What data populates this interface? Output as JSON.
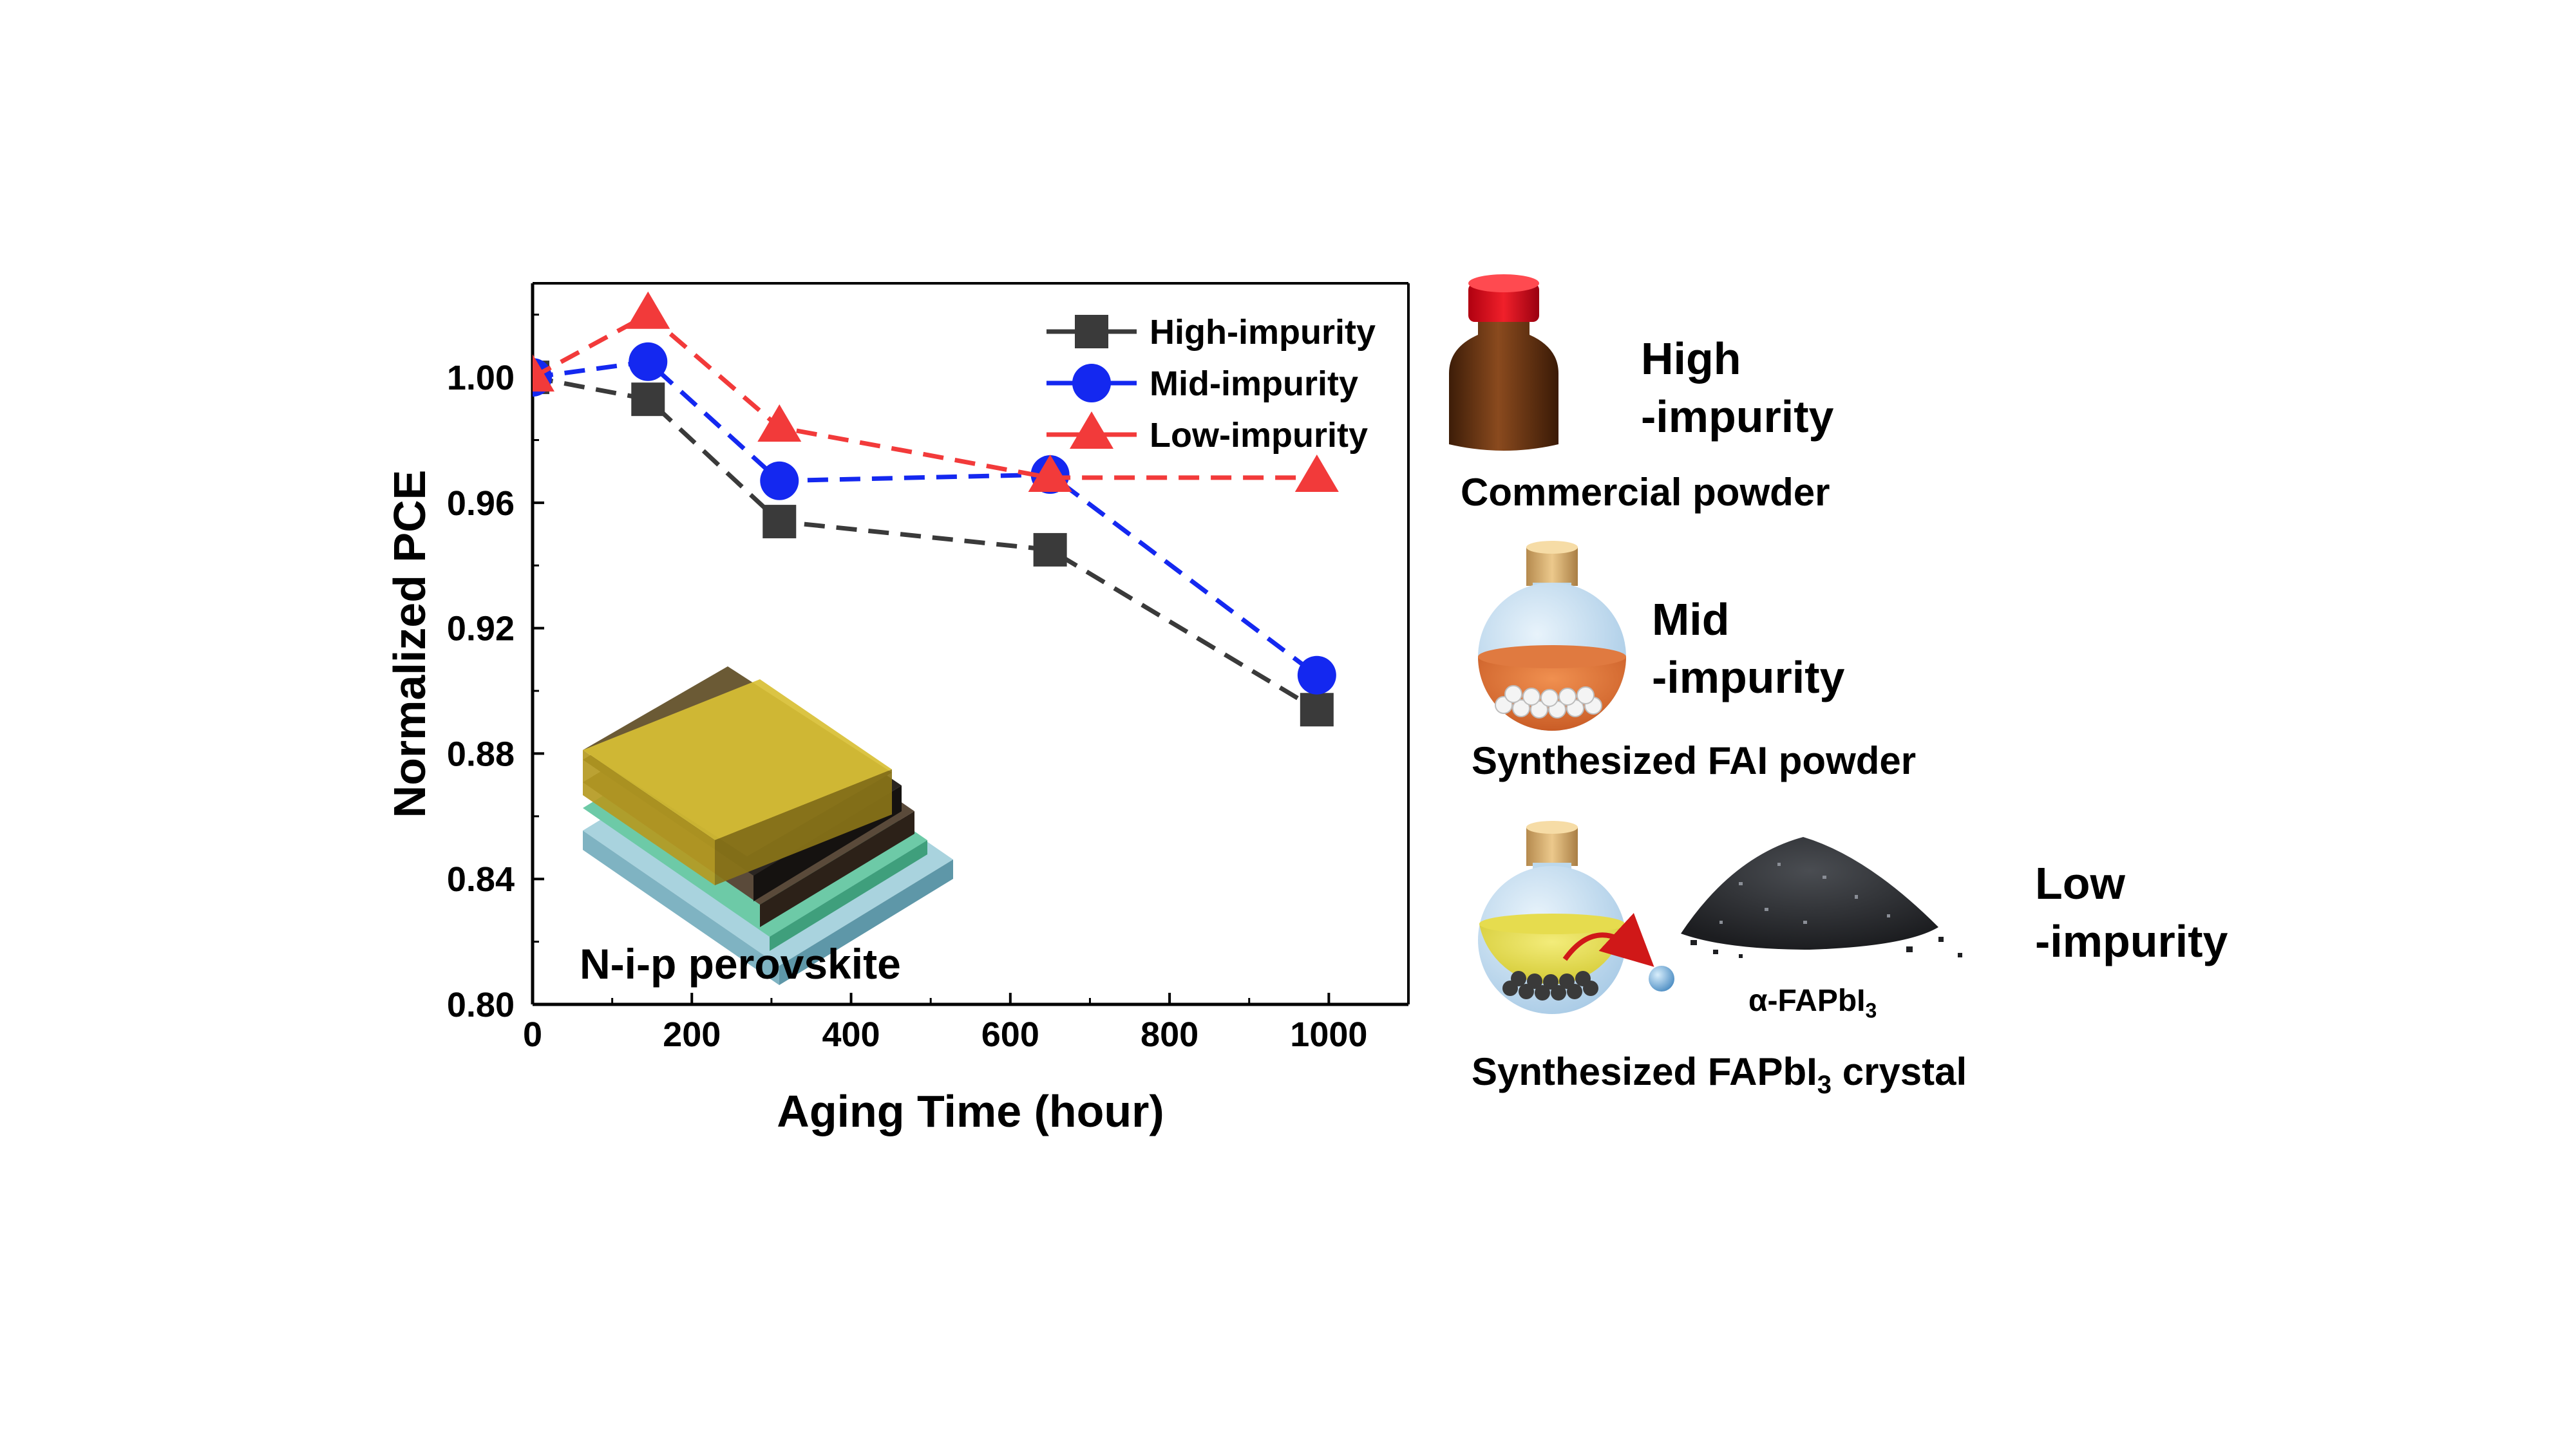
{
  "chart_data": {
    "type": "line",
    "xlabel": "Aging Time (hour)",
    "ylabel": "Normalized PCE",
    "xlim": [
      0,
      1100
    ],
    "ylim": [
      0.8,
      1.03
    ],
    "x_ticks": [
      0,
      200,
      400,
      600,
      800,
      1000
    ],
    "x_tick_labels": [
      "0",
      "200",
      "400",
      "600",
      "800",
      "1000"
    ],
    "y_ticks": [
      0.8,
      0.84,
      0.88,
      0.92,
      0.96,
      1.0
    ],
    "y_tick_labels": [
      "0.80",
      "0.84",
      "0.88",
      "0.92",
      "0.96",
      "1.00"
    ],
    "legend_position": "top-right",
    "grid": false,
    "series": [
      {
        "name": "High-impurity",
        "color": "#3a3a3a",
        "marker": "square",
        "x": [
          0,
          145,
          310,
          650,
          985
        ],
        "y": [
          1.0,
          0.993,
          0.954,
          0.945,
          0.894
        ]
      },
      {
        "name": "Mid-impurity",
        "color": "#1428f0",
        "marker": "circle",
        "x": [
          0,
          145,
          310,
          650,
          985
        ],
        "y": [
          1.0,
          1.005,
          0.967,
          0.969,
          0.905
        ]
      },
      {
        "name": "Low-impurity",
        "color": "#f23a3a",
        "marker": "triangle",
        "x": [
          0,
          145,
          310,
          650,
          985
        ],
        "y": [
          1.0,
          1.02,
          0.984,
          0.968,
          0.968
        ]
      }
    ]
  },
  "inset": {
    "caption": "N-i-p perovskite"
  },
  "materials": {
    "high": {
      "label_line1": "High",
      "label_line2": "-impurity",
      "caption": "Commercial powder"
    },
    "mid": {
      "label_line1": "Mid",
      "label_line2": "-impurity",
      "caption": "Synthesized FAI powder"
    },
    "low": {
      "label_line1": "Low",
      "label_line2": "-impurity",
      "caption_prefix": "Synthesized FAPbI",
      "caption_sub": "3",
      "caption_suffix": " crystal",
      "product_prefix": "α-FAPbI",
      "product_sub": "3"
    }
  }
}
